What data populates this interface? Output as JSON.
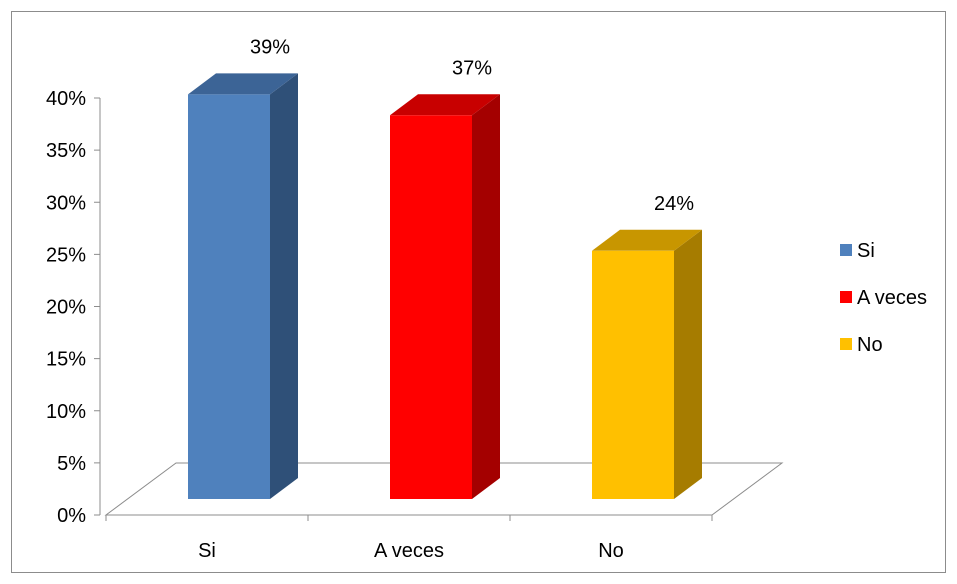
{
  "chart_data": {
    "type": "bar",
    "style": "3d-column",
    "categories": [
      "Si",
      "A veces",
      "No"
    ],
    "values": [
      0.39,
      0.37,
      0.24
    ],
    "data_labels": [
      "39%",
      "37%",
      "24%"
    ],
    "colors": [
      "#4F81BD",
      "#FF0000",
      "#FFC000"
    ],
    "side_colors": [
      "#2F5078",
      "#A40000",
      "#A67C00"
    ],
    "top_colors": [
      "#3C6496",
      "#C80000",
      "#C89600"
    ],
    "ylim": [
      0,
      0.4
    ],
    "y_ticks": [
      {
        "value": 0,
        "label": "0%"
      },
      {
        "value": 0.05,
        "label": "5%"
      },
      {
        "value": 0.1,
        "label": "10%"
      },
      {
        "value": 0.15,
        "label": "15%"
      },
      {
        "value": 0.2,
        "label": "20%"
      },
      {
        "value": 0.25,
        "label": "25%"
      },
      {
        "value": 0.3,
        "label": "30%"
      },
      {
        "value": 0.35,
        "label": "35%"
      },
      {
        "value": 0.4,
        "label": "40%"
      }
    ],
    "grid": false,
    "legend": {
      "placement": "right",
      "entries": [
        "Si",
        "A veces",
        "No"
      ]
    },
    "title": "",
    "xlabel": "",
    "ylabel": ""
  }
}
